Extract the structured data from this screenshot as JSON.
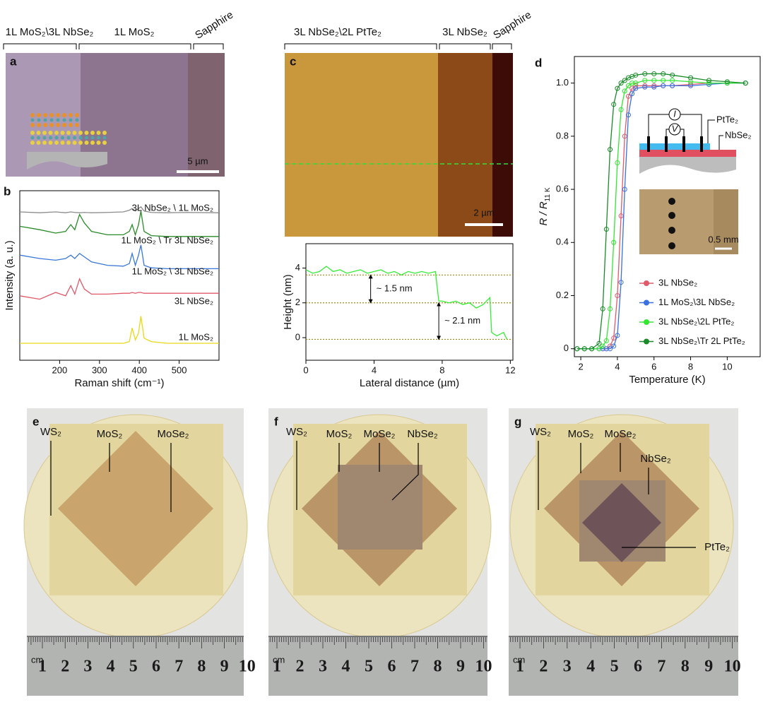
{
  "figure": {
    "panel_a": {
      "label": "a",
      "regions": [
        "1L MoS₂\\3L NbSe₂",
        "1L MoS₂",
        "Sapphire"
      ],
      "scale_bar": "5 µm"
    },
    "panel_b": {
      "label": "b"
    },
    "panel_c": {
      "label": "c",
      "regions": [
        "3L NbSe₂\\2L PtTe₂",
        "3L NbSe₂",
        "Sapphire"
      ],
      "scale_bar": "2 µm"
    },
    "panel_d": {
      "label": "d",
      "schematic": [
        "I",
        "V",
        "PtTe₂",
        "NbSe₂"
      ],
      "scale_bar": "0.5 mm"
    },
    "panel_e": {
      "label": "e",
      "annotations": [
        "WS₂",
        "MoS₂",
        "MoSe₂"
      ],
      "ruler_unit": "cm",
      "ruler": [
        "1",
        "2",
        "3",
        "4",
        "5",
        "6",
        "7",
        "8",
        "9",
        "10"
      ]
    },
    "panel_f": {
      "label": "f",
      "annotations": [
        "WS₂",
        "MoS₂",
        "MoSe₂",
        "NbSe₂"
      ],
      "ruler_unit": "cm",
      "ruler": [
        "1",
        "2",
        "3",
        "4",
        "5",
        "6",
        "7",
        "8",
        "9",
        "10"
      ]
    },
    "panel_g": {
      "label": "g",
      "annotations": [
        "WS₂",
        "MoS₂",
        "MoSe₂",
        "NbSe₂",
        "PtTe₂"
      ],
      "ruler_unit": "cm",
      "ruler": [
        "1",
        "2",
        "3",
        "4",
        "5",
        "6",
        "7",
        "8",
        "9",
        "10"
      ]
    }
  },
  "chart_data": [
    {
      "type": "line",
      "x_label": "Raman shift (cm⁻¹)",
      "y_label": "Intensity (a. u.)",
      "x": [
        100,
        150,
        190,
        215,
        228,
        238,
        250,
        262,
        280,
        320,
        360,
        375,
        382,
        390,
        398,
        404,
        412,
        430,
        470,
        520,
        600
      ],
      "xlim": [
        100,
        600
      ],
      "xticks": [
        200,
        300,
        400,
        500
      ],
      "ylim": [
        0,
        10
      ],
      "series": [
        {
          "name": "3L NbSe₂ \\ 1L MoS₂",
          "color": "#8c8c8c",
          "values": [
            8.75,
            8.7,
            8.75,
            8.7,
            8.75,
            8.72,
            8.7,
            8.72,
            8.7,
            8.72,
            8.75,
            8.85,
            8.95,
            8.8,
            8.95,
            9.05,
            8.8,
            8.72,
            8.7,
            8.72,
            8.7
          ]
        },
        {
          "name": "1L MoS₂ \\ Tr 3L NbSe₂",
          "color": "#2a8a2a",
          "values": [
            7.9,
            7.7,
            7.5,
            7.6,
            8.0,
            7.7,
            8.6,
            8.1,
            7.6,
            7.4,
            7.4,
            7.6,
            8.0,
            7.4,
            8.0,
            8.8,
            7.6,
            7.35,
            7.3,
            7.3,
            7.3
          ]
        },
        {
          "name": "1L MoS₂ \\ 3L NbSe₂",
          "color": "#3a78d8",
          "values": [
            6.2,
            6.0,
            5.9,
            6.0,
            6.2,
            6.0,
            6.3,
            6.1,
            5.8,
            5.6,
            5.55,
            5.7,
            6.3,
            5.6,
            6.2,
            6.8,
            5.6,
            5.45,
            5.4,
            5.4,
            5.4
          ]
        },
        {
          "name": "3L NbSe₂",
          "color": "#e05a6a",
          "values": [
            3.8,
            3.6,
            4.0,
            3.8,
            4.4,
            3.9,
            4.8,
            4.2,
            3.9,
            3.9,
            3.95,
            3.95,
            4.0,
            3.95,
            4.0,
            4.0,
            3.95,
            3.95,
            3.95,
            3.95,
            3.95
          ]
        },
        {
          "name": "1L MoS₂",
          "color": "#e8d81a",
          "values": [
            1.0,
            1.0,
            1.0,
            1.0,
            1.0,
            1.0,
            1.0,
            1.0,
            1.0,
            1.0,
            1.0,
            1.1,
            1.9,
            1.2,
            1.6,
            2.6,
            1.3,
            1.1,
            1.0,
            1.0,
            1.0
          ]
        }
      ]
    },
    {
      "type": "line",
      "x_label": "Lateral distance (µm)",
      "y_label": "Height (nm)",
      "x": [
        0,
        0.4,
        0.8,
        1.2,
        1.6,
        2,
        2.4,
        2.8,
        3.2,
        3.6,
        4,
        4.4,
        4.8,
        5.2,
        5.6,
        6,
        6.4,
        6.8,
        7.2,
        7.6,
        7.8,
        8.0,
        8.4,
        8.8,
        9.2,
        9.6,
        10,
        10.4,
        10.8,
        10.9,
        11.2,
        11.6,
        11.8
      ],
      "xlim": [
        0,
        12.15
      ],
      "xticks": [
        0,
        4,
        8,
        12
      ],
      "ylim": [
        -1.3,
        5.4
      ],
      "yticks": [
        0,
        2,
        4
      ],
      "series": [
        {
          "color": "#33ee33",
          "values": [
            3.9,
            3.7,
            3.8,
            4.1,
            3.8,
            3.9,
            3.7,
            3.8,
            3.9,
            3.7,
            3.8,
            3.9,
            3.7,
            3.8,
            3.6,
            3.8,
            3.7,
            3.8,
            3.7,
            3.8,
            2.1,
            2.1,
            2.0,
            2.1,
            1.9,
            2.0,
            1.7,
            1.9,
            2.3,
            0.3,
            0.1,
            0.3,
            -0.1
          ]
        }
      ],
      "reference_lines": {
        "values": [
          3.6,
          2.0,
          -0.1
        ],
        "color": "#9a8a10"
      },
      "annotations": [
        {
          "text": "~ 1.5 nm",
          "from": 3.6,
          "to": 2.0,
          "x": 3.8
        },
        {
          "text": "~ 2.1 nm",
          "from": 2.0,
          "to": -0.1,
          "x": 7.8
        }
      ]
    },
    {
      "type": "line",
      "markers": true,
      "x_label": "Temperature (K)",
      "y_label": {
        "main": "R / R",
        "sub": "11 K"
      },
      "x": [
        1.8,
        2.2,
        2.6,
        3.0,
        3.2,
        3.4,
        3.6,
        3.8,
        4.0,
        4.2,
        4.4,
        4.6,
        4.8,
        5.0,
        5.5,
        6,
        6.5,
        7,
        8,
        9,
        10,
        11
      ],
      "xlim": [
        1.65,
        11.8
      ],
      "xticks": [
        2,
        4,
        6,
        8,
        10
      ],
      "ylim": [
        -0.03,
        1.1
      ],
      "yticks": [
        0,
        0.2,
        0.4,
        0.6,
        0.8,
        {
          "value": 1,
          "label": "1.0"
        }
      ],
      "legend": "lower right",
      "series": [
        {
          "name": "3L NbSe₂",
          "color": "#e05a6a",
          "values": [
            0,
            0,
            0,
            0,
            0,
            0,
            0.01,
            0.04,
            0.2,
            0.5,
            0.8,
            0.95,
            0.98,
            0.99,
            0.99,
            0.99,
            0.99,
            0.99,
            0.995,
            1.0,
            1.0,
            1.0
          ]
        },
        {
          "name": "1L MoS₂\\3L NbSe₂",
          "color": "#3a70e0",
          "values": [
            0,
            0,
            0,
            0,
            0,
            0,
            0,
            0.01,
            0.05,
            0.25,
            0.6,
            0.88,
            0.96,
            0.98,
            0.985,
            0.985,
            0.99,
            0.99,
            0.99,
            0.995,
            1.0,
            1.0
          ]
        },
        {
          "name": "3L NbSe₂\\2L PtTe₂",
          "color": "#33e633",
          "values": [
            0,
            0,
            0,
            0,
            0.01,
            0.03,
            0.15,
            0.4,
            0.7,
            0.9,
            0.97,
            0.99,
            1.0,
            1.0,
            1.01,
            1.01,
            1.01,
            1.01,
            1.005,
            1.0,
            1.0,
            1.0
          ]
        },
        {
          "name": "3L NbSe₂\\Tr 2L PtTe₂",
          "color": "#1a8a2a",
          "values": [
            0,
            0,
            0,
            0.02,
            0.15,
            0.45,
            0.75,
            0.92,
            0.98,
            1.0,
            1.01,
            1.02,
            1.025,
            1.03,
            1.035,
            1.035,
            1.035,
            1.03,
            1.02,
            1.01,
            1.005,
            1.0
          ]
        }
      ]
    }
  ]
}
